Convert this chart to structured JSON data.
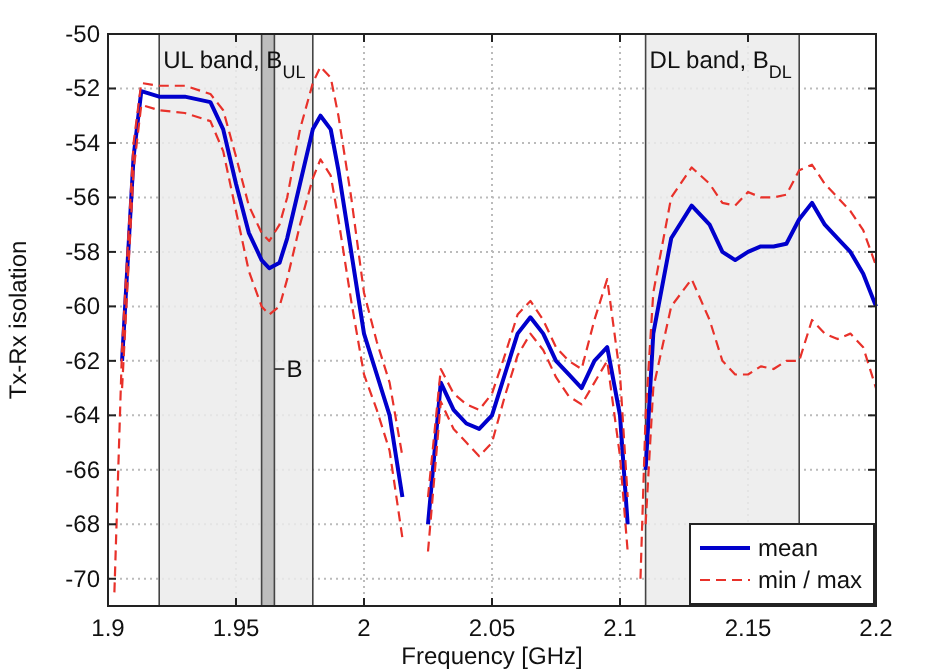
{
  "chart_data": {
    "type": "line",
    "xlabel": "Frequency [GHz]",
    "ylabel": "Tx-Rx isolation",
    "x": [
      1.9025,
      1.9055,
      1.91,
      1.913,
      1.92,
      1.93,
      1.94,
      1.945,
      1.95,
      1.955,
      1.96,
      1.963,
      1.967,
      1.97,
      1.975,
      1.98,
      1.983,
      1.987,
      1.99,
      1.995,
      2.0,
      2.005,
      2.01,
      2.015,
      2.02,
      2.025,
      2.03,
      2.035,
      2.04,
      2.045,
      2.05,
      2.055,
      2.06,
      2.065,
      2.07,
      2.075,
      2.08,
      2.085,
      2.09,
      2.095,
      2.1,
      2.103,
      2.105,
      2.108,
      2.11,
      2.113,
      2.12,
      2.128,
      2.135,
      2.14,
      2.145,
      2.15,
      2.155,
      2.16,
      2.165,
      2.17,
      2.175,
      2.18,
      2.185,
      2.19,
      2.195,
      2.2
    ],
    "series": [
      {
        "name": "mean",
        "color": "#0000cc",
        "line_style": "solid",
        "values": [
          null,
          -62,
          -54.5,
          -52.1,
          -52.3,
          -52.3,
          -52.5,
          -53.5,
          -55.5,
          -57.3,
          -58.3,
          -58.6,
          -58.4,
          -57.5,
          -55.5,
          -53.5,
          -53,
          -53.5,
          -55,
          -58,
          -61,
          -62.5,
          -64,
          -67,
          null,
          -68,
          -62.8,
          -63.8,
          -64.3,
          -64.5,
          -64,
          -62.5,
          -61,
          -60.4,
          -61,
          -62,
          -62.5,
          -63,
          -62,
          -61.5,
          -64,
          -68,
          null,
          null,
          -66,
          -61,
          -57.5,
          -56.3,
          -57,
          -58,
          -58.3,
          -58,
          -57.8,
          -57.8,
          -57.7,
          -56.8,
          -56.2,
          -57,
          -57.5,
          -58,
          -58.8,
          -60
        ]
      },
      {
        "name": "min / max",
        "color": "#e8312a",
        "line_style": "dashed",
        "values": [
          null,
          -63,
          -55,
          -52.6,
          -52.8,
          -52.9,
          -53.2,
          -54.3,
          -56.5,
          -58.7,
          -60,
          -60.3,
          -60,
          -59,
          -57,
          -55.3,
          -54.6,
          -55.2,
          -56.8,
          -59.8,
          -62.5,
          -63.8,
          -65.3,
          -68.5,
          null,
          -69,
          -63.5,
          -64.5,
          -65,
          -65.5,
          -65,
          -63.3,
          -61.8,
          -61,
          -61.6,
          -62.6,
          -63.3,
          -63.6,
          -62.8,
          -62,
          -65.5,
          -69,
          null,
          null,
          -68,
          -63,
          -60,
          -59,
          -60.5,
          -62,
          -62.5,
          -62.5,
          -62.2,
          -62.3,
          -62,
          -62,
          -60.5,
          -61,
          -61.2,
          -61,
          -61.5,
          -63
        ]
      },
      {
        "color": "#e8312a",
        "line_style": "dashed",
        "values": [
          -70.5,
          -61.5,
          -54,
          -51.8,
          -51.9,
          -51.9,
          -52.2,
          -52.8,
          -54.5,
          -56.3,
          -57.3,
          -57.6,
          -57,
          -56,
          -53.5,
          -51.8,
          -51.2,
          -51.6,
          -53,
          -56,
          -59.5,
          -61.3,
          -62.8,
          -65.5,
          null,
          -67,
          -62.3,
          -63.2,
          -63.6,
          -63.8,
          -63.2,
          -61.8,
          -60.3,
          -59.8,
          -60.5,
          -61.5,
          -62,
          -62.3,
          -60.5,
          -59,
          -62.5,
          -67,
          null,
          -70,
          -64,
          -59.5,
          -56,
          -54.9,
          -55.5,
          -56.2,
          -56.3,
          -55.8,
          -56,
          -56,
          -55.9,
          -55,
          -54.8,
          -55.5,
          -56,
          -56.5,
          -57.2,
          -58.5
        ]
      }
    ],
    "bands": [
      {
        "axis": "x",
        "from": 1.92,
        "to": 1.98,
        "label": "UL band, B$_{UL}$",
        "color": "#ebebeb"
      },
      {
        "axis": "x",
        "from": 1.96,
        "to": 1.965,
        "label": "B",
        "color": "#b4b4b4"
      },
      {
        "axis": "x",
        "from": 2.11,
        "to": 2.17,
        "label": "DL band, B$_{DL}$",
        "color": "#ebebeb"
      }
    ],
    "xlim": [
      1.9,
      2.2
    ],
    "xticks": [
      1.9,
      1.95,
      2,
      2.05,
      2.1,
      2.15,
      2.2
    ],
    "ylim": [
      -71,
      -50
    ],
    "yticks": [
      -70,
      -68,
      -66,
      -64,
      -62,
      -60,
      -58,
      -56,
      -54,
      -52,
      -50
    ],
    "grid": true,
    "legend": "bottom right",
    "marker": "none"
  }
}
